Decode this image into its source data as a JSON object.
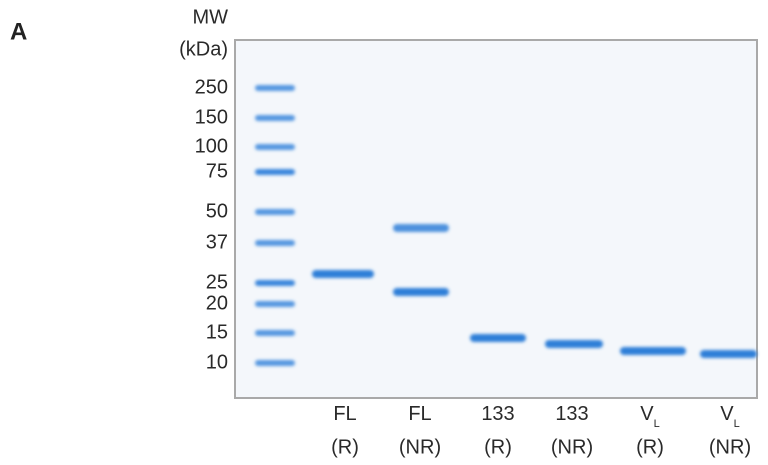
{
  "panel": "A",
  "mw_label": [
    "MW",
    "(kDa)"
  ],
  "markers": [
    "250",
    "150",
    "100",
    "75",
    "50",
    "37",
    "25",
    "20",
    "15",
    "10"
  ],
  "lanes": [
    {
      "label": "FL",
      "condition": "(R)"
    },
    {
      "label": "FL",
      "condition": "(NR)"
    },
    {
      "label": "133",
      "condition": "(R)"
    },
    {
      "label": "133",
      "condition": "(NR)"
    },
    {
      "label": "V",
      "subscript": "L",
      "condition": "(R)"
    },
    {
      "label": "V",
      "subscript": "L",
      "condition": "(NR)"
    }
  ]
}
